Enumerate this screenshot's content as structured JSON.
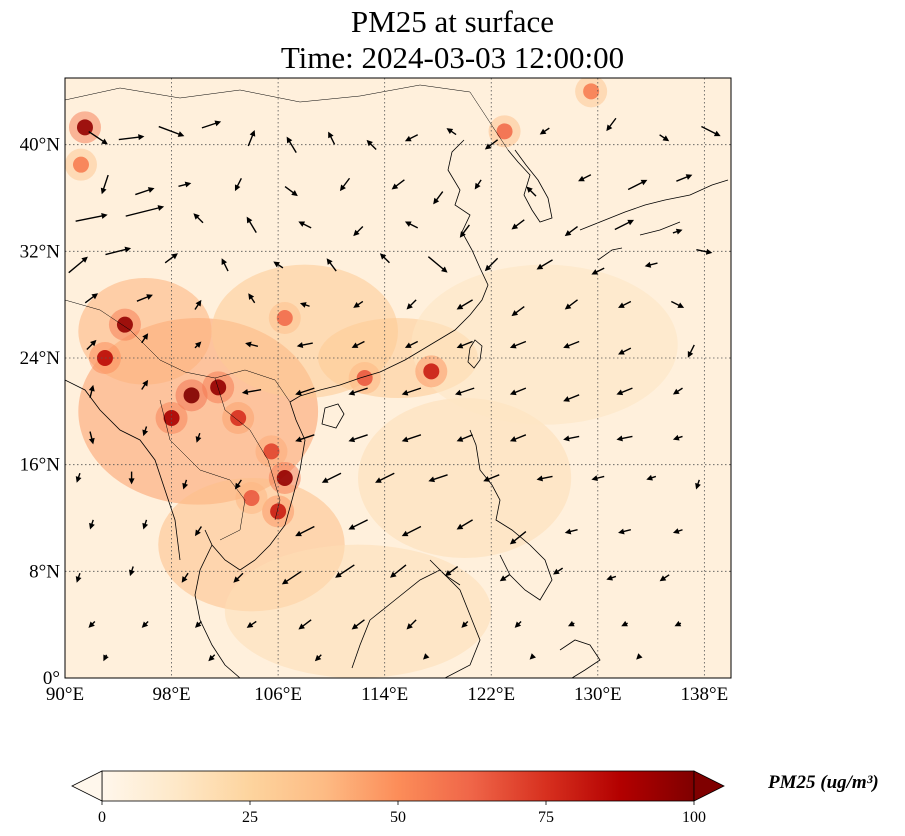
{
  "title": {
    "line1": "PM25 at surface",
    "line2": "Time: 2024-03-03 12:00:00"
  },
  "map": {
    "lon_range": [
      90,
      140
    ],
    "lat_range": [
      0,
      45
    ],
    "lon_ticks": [
      {
        "value": 90,
        "label": "90°E"
      },
      {
        "value": 98,
        "label": "98°E"
      },
      {
        "value": 106,
        "label": "106°E"
      },
      {
        "value": 114,
        "label": "114°E"
      },
      {
        "value": 122,
        "label": "122°E"
      },
      {
        "value": 130,
        "label": "130°E"
      },
      {
        "value": 138,
        "label": "138°E"
      }
    ],
    "lat_ticks": [
      {
        "value": 0,
        "label": "0°"
      },
      {
        "value": 8,
        "label": "8°N"
      },
      {
        "value": 16,
        "label": "16°N"
      },
      {
        "value": 24,
        "label": "24°N"
      },
      {
        "value": 32,
        "label": "32°N"
      },
      {
        "value": 40,
        "label": "40°N"
      }
    ],
    "gridlines": true,
    "hotspots": [
      {
        "lon": 91.5,
        "lat": 41.3,
        "level": 95
      },
      {
        "lon": 91.2,
        "lat": 38.5,
        "level": 55
      },
      {
        "lon": 94.5,
        "lat": 26.5,
        "level": 95
      },
      {
        "lon": 93.0,
        "lat": 24.0,
        "level": 85
      },
      {
        "lon": 99.5,
        "lat": 21.2,
        "level": 100
      },
      {
        "lon": 101.5,
        "lat": 21.8,
        "level": 95
      },
      {
        "lon": 98.0,
        "lat": 19.5,
        "level": 90
      },
      {
        "lon": 103.0,
        "lat": 19.5,
        "level": 75
      },
      {
        "lon": 105.5,
        "lat": 17.0,
        "level": 70
      },
      {
        "lon": 106.5,
        "lat": 15.0,
        "level": 95
      },
      {
        "lon": 106.0,
        "lat": 12.5,
        "level": 80
      },
      {
        "lon": 104.0,
        "lat": 13.5,
        "level": 65
      },
      {
        "lon": 106.5,
        "lat": 27.0,
        "level": 60
      },
      {
        "lon": 112.5,
        "lat": 22.5,
        "level": 65
      },
      {
        "lon": 117.5,
        "lat": 23.0,
        "level": 80
      },
      {
        "lon": 123.0,
        "lat": 41.0,
        "level": 60
      },
      {
        "lon": 129.5,
        "lat": 44.0,
        "level": 55
      }
    ],
    "haze_regions": [
      {
        "lon": 100,
        "lat": 20,
        "rx": 9,
        "ry": 7,
        "level": 45
      },
      {
        "lon": 104,
        "lat": 10,
        "rx": 7,
        "ry": 5,
        "level": 35
      },
      {
        "lon": 108,
        "lat": 26,
        "rx": 7,
        "ry": 5,
        "level": 30
      },
      {
        "lon": 96,
        "lat": 26,
        "rx": 5,
        "ry": 4,
        "level": 40
      },
      {
        "lon": 115,
        "lat": 24,
        "rx": 6,
        "ry": 3,
        "level": 30
      },
      {
        "lon": 120,
        "lat": 15,
        "rx": 8,
        "ry": 6,
        "level": 18
      },
      {
        "lon": 112,
        "lat": 5,
        "rx": 10,
        "ry": 5,
        "level": 18
      },
      {
        "lon": 126,
        "lat": 25,
        "rx": 10,
        "ry": 6,
        "level": 14
      }
    ],
    "wind_vectors": [
      {
        "lon": 92.5,
        "lat": 40.5,
        "u": 6,
        "v": -4
      },
      {
        "lon": 95,
        "lat": 40.5,
        "u": 8,
        "v": 1
      },
      {
        "lon": 98,
        "lat": 41,
        "u": 8,
        "v": -3
      },
      {
        "lon": 101,
        "lat": 41.5,
        "u": 6,
        "v": 2
      },
      {
        "lon": 104,
        "lat": 40.5,
        "u": 2,
        "v": 5
      },
      {
        "lon": 107,
        "lat": 40,
        "u": -3,
        "v": 5
      },
      {
        "lon": 110,
        "lat": 40.5,
        "u": -2,
        "v": 4
      },
      {
        "lon": 113,
        "lat": 40,
        "u": -3,
        "v": 3
      },
      {
        "lon": 116,
        "lat": 40.5,
        "u": -4,
        "v": -2
      },
      {
        "lon": 119,
        "lat": 41,
        "u": -3,
        "v": 2
      },
      {
        "lon": 122,
        "lat": 40,
        "u": -4,
        "v": -3
      },
      {
        "lon": 126,
        "lat": 41,
        "u": -3,
        "v": -2
      },
      {
        "lon": 131,
        "lat": 41.5,
        "u": -3,
        "v": -4
      },
      {
        "lon": 135,
        "lat": 40.5,
        "u": 3,
        "v": -2
      },
      {
        "lon": 138.5,
        "lat": 41,
        "u": 6,
        "v": -3
      },
      {
        "lon": 93,
        "lat": 37,
        "u": -2,
        "v": -6
      },
      {
        "lon": 96,
        "lat": 36.5,
        "u": 6,
        "v": 2
      },
      {
        "lon": 99,
        "lat": 37,
        "u": 4,
        "v": 1
      },
      {
        "lon": 103,
        "lat": 37,
        "u": -2,
        "v": -4
      },
      {
        "lon": 107,
        "lat": 36.5,
        "u": 4,
        "v": -3
      },
      {
        "lon": 111,
        "lat": 37,
        "u": -3,
        "v": -4
      },
      {
        "lon": 115,
        "lat": 37,
        "u": -4,
        "v": -3
      },
      {
        "lon": 118,
        "lat": 36,
        "u": -3,
        "v": -4
      },
      {
        "lon": 121,
        "lat": 37,
        "u": -2,
        "v": -3
      },
      {
        "lon": 125,
        "lat": 36.5,
        "u": -3,
        "v": 3
      },
      {
        "lon": 129,
        "lat": 37.5,
        "u": -4,
        "v": -2
      },
      {
        "lon": 133,
        "lat": 37,
        "u": 6,
        "v": 3
      },
      {
        "lon": 136.5,
        "lat": 37.5,
        "u": 5,
        "v": 2
      },
      {
        "lon": 92,
        "lat": 34.5,
        "u": 10,
        "v": 2
      },
      {
        "lon": 96,
        "lat": 35,
        "u": 12,
        "v": 3
      },
      {
        "lon": 100,
        "lat": 34.5,
        "u": -3,
        "v": 3
      },
      {
        "lon": 104,
        "lat": 34,
        "u": -3,
        "v": 5
      },
      {
        "lon": 108,
        "lat": 34,
        "u": -4,
        "v": 2
      },
      {
        "lon": 112,
        "lat": 33.5,
        "u": -3,
        "v": -3
      },
      {
        "lon": 116,
        "lat": 34,
        "u": -4,
        "v": 2
      },
      {
        "lon": 120,
        "lat": 33.5,
        "u": -3,
        "v": -4
      },
      {
        "lon": 124,
        "lat": 34,
        "u": -4,
        "v": -3
      },
      {
        "lon": 128,
        "lat": 33.5,
        "u": -4,
        "v": -3
      },
      {
        "lon": 132,
        "lat": 34,
        "u": 6,
        "v": 3
      },
      {
        "lon": 136,
        "lat": 33.5,
        "u": 3,
        "v": 1
      },
      {
        "lon": 91,
        "lat": 31,
        "u": 6,
        "v": 5
      },
      {
        "lon": 94,
        "lat": 32,
        "u": 8,
        "v": 2
      },
      {
        "lon": 98,
        "lat": 31.5,
        "u": 4,
        "v": 3
      },
      {
        "lon": 102,
        "lat": 31,
        "u": -2,
        "v": 4
      },
      {
        "lon": 106,
        "lat": 31,
        "u": -3,
        "v": 2
      },
      {
        "lon": 110,
        "lat": 31,
        "u": -3,
        "v": 4
      },
      {
        "lon": 114,
        "lat": 31.5,
        "u": -3,
        "v": 3
      },
      {
        "lon": 118,
        "lat": 31,
        "u": 6,
        "v": -5
      },
      {
        "lon": 122,
        "lat": 31,
        "u": -4,
        "v": -4
      },
      {
        "lon": 126,
        "lat": 31,
        "u": -5,
        "v": -3
      },
      {
        "lon": 130,
        "lat": 30.5,
        "u": -4,
        "v": -2
      },
      {
        "lon": 134,
        "lat": 31,
        "u": -4,
        "v": -1
      },
      {
        "lon": 138,
        "lat": 32,
        "u": 5,
        "v": -1
      },
      {
        "lon": 92,
        "lat": 28.5,
        "u": 4,
        "v": 3
      },
      {
        "lon": 96,
        "lat": 28.5,
        "u": 5,
        "v": 2
      },
      {
        "lon": 100,
        "lat": 28,
        "u": 2,
        "v": 3
      },
      {
        "lon": 104,
        "lat": 28.5,
        "u": -2,
        "v": 3
      },
      {
        "lon": 108,
        "lat": 28,
        "u": -3,
        "v": 1
      },
      {
        "lon": 112,
        "lat": 28,
        "u": -3,
        "v": -2
      },
      {
        "lon": 116,
        "lat": 28,
        "u": -3,
        "v": -3
      },
      {
        "lon": 120,
        "lat": 28,
        "u": -5,
        "v": -3
      },
      {
        "lon": 124,
        "lat": 27.5,
        "u": -4,
        "v": -3
      },
      {
        "lon": 128,
        "lat": 28,
        "u": -4,
        "v": -3
      },
      {
        "lon": 132,
        "lat": 28,
        "u": -4,
        "v": -2
      },
      {
        "lon": 136,
        "lat": 28,
        "u": 4,
        "v": -2
      },
      {
        "lon": 92,
        "lat": 25,
        "u": 3,
        "v": 3
      },
      {
        "lon": 96,
        "lat": 25.5,
        "u": 2,
        "v": 3
      },
      {
        "lon": 100,
        "lat": 25,
        "u": 2,
        "v": 2
      },
      {
        "lon": 104,
        "lat": 25,
        "u": -4,
        "v": 1
      },
      {
        "lon": 108,
        "lat": 25,
        "u": -5,
        "v": -1
      },
      {
        "lon": 112,
        "lat": 25,
        "u": -4,
        "v": -2
      },
      {
        "lon": 116,
        "lat": 25,
        "u": -4,
        "v": -2
      },
      {
        "lon": 120,
        "lat": 25,
        "u": -5,
        "v": -2
      },
      {
        "lon": 124,
        "lat": 25,
        "u": -5,
        "v": -2
      },
      {
        "lon": 128,
        "lat": 25,
        "u": -5,
        "v": -2
      },
      {
        "lon": 132,
        "lat": 24.5,
        "u": -4,
        "v": -2
      },
      {
        "lon": 137,
        "lat": 24.5,
        "u": -2,
        "v": -4
      },
      {
        "lon": 92,
        "lat": 21.5,
        "u": 1,
        "v": 4
      },
      {
        "lon": 96,
        "lat": 22,
        "u": 2,
        "v": 3
      },
      {
        "lon": 104,
        "lat": 21.5,
        "u": -6,
        "v": -1
      },
      {
        "lon": 108,
        "lat": 21.5,
        "u": -6,
        "v": -2
      },
      {
        "lon": 112,
        "lat": 21.5,
        "u": -6,
        "v": -2
      },
      {
        "lon": 116,
        "lat": 21.5,
        "u": -6,
        "v": -2
      },
      {
        "lon": 120,
        "lat": 21.5,
        "u": -6,
        "v": -2
      },
      {
        "lon": 124,
        "lat": 21.5,
        "u": -5,
        "v": -2
      },
      {
        "lon": 128,
        "lat": 21,
        "u": -5,
        "v": -2
      },
      {
        "lon": 132,
        "lat": 21.5,
        "u": -5,
        "v": -2
      },
      {
        "lon": 136,
        "lat": 21.5,
        "u": -3,
        "v": -2
      },
      {
        "lon": 92,
        "lat": 18,
        "u": 1,
        "v": -4
      },
      {
        "lon": 96,
        "lat": 18.5,
        "u": -1,
        "v": -3
      },
      {
        "lon": 100,
        "lat": 18,
        "u": -1,
        "v": -3
      },
      {
        "lon": 108,
        "lat": 18,
        "u": -6,
        "v": -2
      },
      {
        "lon": 112,
        "lat": 18,
        "u": -6,
        "v": -2
      },
      {
        "lon": 116,
        "lat": 18,
        "u": -6,
        "v": -2
      },
      {
        "lon": 120,
        "lat": 18,
        "u": -5,
        "v": -2
      },
      {
        "lon": 124,
        "lat": 18,
        "u": -5,
        "v": -2
      },
      {
        "lon": 128,
        "lat": 18,
        "u": -5,
        "v": -1
      },
      {
        "lon": 132,
        "lat": 18,
        "u": -5,
        "v": -1
      },
      {
        "lon": 136,
        "lat": 18,
        "u": -3,
        "v": -1
      },
      {
        "lon": 91,
        "lat": 15,
        "u": -1,
        "v": -3
      },
      {
        "lon": 95,
        "lat": 15,
        "u": 0,
        "v": -4
      },
      {
        "lon": 99,
        "lat": 14.5,
        "u": -1,
        "v": -3
      },
      {
        "lon": 103,
        "lat": 14.5,
        "u": -2,
        "v": -3
      },
      {
        "lon": 110,
        "lat": 15,
        "u": -6,
        "v": -3
      },
      {
        "lon": 114,
        "lat": 15,
        "u": -6,
        "v": -3
      },
      {
        "lon": 118,
        "lat": 15,
        "u": -6,
        "v": -2
      },
      {
        "lon": 122,
        "lat": 15,
        "u": -5,
        "v": -2
      },
      {
        "lon": 126,
        "lat": 15,
        "u": -5,
        "v": -1
      },
      {
        "lon": 130,
        "lat": 15,
        "u": -4,
        "v": -1
      },
      {
        "lon": 134,
        "lat": 15,
        "u": -3,
        "v": -1
      },
      {
        "lon": 137.5,
        "lat": 14.5,
        "u": -1,
        "v": -3
      },
      {
        "lon": 92,
        "lat": 11.5,
        "u": -1,
        "v": -3
      },
      {
        "lon": 96,
        "lat": 11.5,
        "u": -1,
        "v": -3
      },
      {
        "lon": 100,
        "lat": 11,
        "u": -2,
        "v": -3
      },
      {
        "lon": 108,
        "lat": 11,
        "u": -6,
        "v": -3
      },
      {
        "lon": 112,
        "lat": 11.5,
        "u": -6,
        "v": -3
      },
      {
        "lon": 116,
        "lat": 11,
        "u": -6,
        "v": -3
      },
      {
        "lon": 120,
        "lat": 11.5,
        "u": -5,
        "v": -3
      },
      {
        "lon": 124,
        "lat": 10.5,
        "u": -5,
        "v": -4
      },
      {
        "lon": 128,
        "lat": 11,
        "u": -4,
        "v": -1
      },
      {
        "lon": 132,
        "lat": 11,
        "u": -4,
        "v": -1
      },
      {
        "lon": 136,
        "lat": 11,
        "u": -3,
        "v": -1
      },
      {
        "lon": 91,
        "lat": 7.5,
        "u": -1,
        "v": -3
      },
      {
        "lon": 95,
        "lat": 8,
        "u": -1,
        "v": -3
      },
      {
        "lon": 99,
        "lat": 7.5,
        "u": -2,
        "v": -3
      },
      {
        "lon": 103,
        "lat": 7.5,
        "u": -3,
        "v": -3
      },
      {
        "lon": 107,
        "lat": 7.5,
        "u": -6,
        "v": -4
      },
      {
        "lon": 111,
        "lat": 8,
        "u": -6,
        "v": -4
      },
      {
        "lon": 115,
        "lat": 8,
        "u": -5,
        "v": -4
      },
      {
        "lon": 119,
        "lat": 8,
        "u": -4,
        "v": -3
      },
      {
        "lon": 123,
        "lat": 7.5,
        "u": -3,
        "v": -2
      },
      {
        "lon": 127,
        "lat": 8,
        "u": -3,
        "v": -2
      },
      {
        "lon": 131,
        "lat": 7.5,
        "u": -3,
        "v": -1
      },
      {
        "lon": 135,
        "lat": 7.5,
        "u": -3,
        "v": -2
      },
      {
        "lon": 92,
        "lat": 4,
        "u": -2,
        "v": -2
      },
      {
        "lon": 96,
        "lat": 4,
        "u": -2,
        "v": -2
      },
      {
        "lon": 100,
        "lat": 4,
        "u": -2,
        "v": -2
      },
      {
        "lon": 104,
        "lat": 4,
        "u": -3,
        "v": -2
      },
      {
        "lon": 108,
        "lat": 4,
        "u": -4,
        "v": -3
      },
      {
        "lon": 112,
        "lat": 4,
        "u": -4,
        "v": -3
      },
      {
        "lon": 116,
        "lat": 4,
        "u": -3,
        "v": -3
      },
      {
        "lon": 120,
        "lat": 4,
        "u": -2,
        "v": -2
      },
      {
        "lon": 124,
        "lat": 4,
        "u": -2,
        "v": -2
      },
      {
        "lon": 128,
        "lat": 4,
        "u": -2,
        "v": -1
      },
      {
        "lon": 132,
        "lat": 4,
        "u": -2,
        "v": -1
      },
      {
        "lon": 136,
        "lat": 4,
        "u": -2,
        "v": -1
      },
      {
        "lon": 93,
        "lat": 1.5,
        "u": -1,
        "v": -2
      },
      {
        "lon": 101,
        "lat": 1.5,
        "u": -2,
        "v": -2
      },
      {
        "lon": 109,
        "lat": 1.5,
        "u": -2,
        "v": -2
      },
      {
        "lon": 117,
        "lat": 1.5,
        "u": -1,
        "v": -1
      },
      {
        "lon": 125,
        "lat": 1.5,
        "u": -1,
        "v": -1
      },
      {
        "lon": 133,
        "lat": 1.5,
        "u": -1,
        "v": -1
      }
    ]
  },
  "colorbar": {
    "min": 0,
    "max": 100,
    "ticks": [
      "0",
      "25",
      "50",
      "75",
      "100"
    ],
    "unit_label": "PM25 (ug/m³)",
    "colormap": "OrRd",
    "colors": [
      "#fff7ec",
      "#fee8c8",
      "#fdd49e",
      "#fdbb84",
      "#fc8d59",
      "#ef6548",
      "#d7301f",
      "#b30000",
      "#7f0000"
    ],
    "extend": "both"
  }
}
